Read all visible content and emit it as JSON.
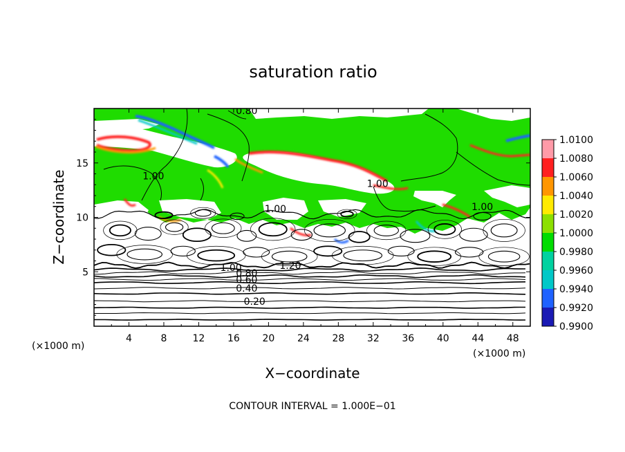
{
  "chart_data": {
    "type": "heatmap",
    "title": "saturation ratio",
    "xlabel": "X−coordinate",
    "ylabel": "Z−coordinate",
    "x_unit": "(×1000 m)",
    "z_unit": "(×1000 m)",
    "xlim": [
      0,
      50
    ],
    "ylim": [
      0,
      20
    ],
    "x_ticks": [
      "4",
      "8",
      "12",
      "16",
      "20",
      "24",
      "28",
      "32",
      "36",
      "40",
      "44",
      "48"
    ],
    "y_ticks": [
      "5",
      "10",
      "15"
    ],
    "colorbar": {
      "range": [
        0.99,
        1.01
      ],
      "ticks": [
        "0.9900",
        "0.9920",
        "0.9940",
        "0.9960",
        "0.9980",
        "1.0000",
        "1.0020",
        "1.0040",
        "1.0060",
        "1.0080",
        "1.0100"
      ],
      "colors": [
        "#6a1a9a",
        "#1a1ab4",
        "#1f62ff",
        "#00c8c8",
        "#00d2a0",
        "#00dc00",
        "#8ce000",
        "#ffea00",
        "#ff9600",
        "#ff2020",
        "#ff9aa8"
      ]
    },
    "contour_labels": [
      {
        "text": "0.20",
        "x": 18.4,
        "z": 2.3
      },
      {
        "text": "0.40",
        "x": 17.5,
        "z": 3.5
      },
      {
        "text": "0.60",
        "x": 17.5,
        "z": 4.3
      },
      {
        "text": "0.80",
        "x": 17.5,
        "z": 4.9
      },
      {
        "text": "1.00",
        "x": 15.7,
        "z": 5.4
      },
      {
        "text": "1.20",
        "x": 22.5,
        "z": 5.6
      },
      {
        "text": "1.00",
        "x": 6.8,
        "z": 13.8
      },
      {
        "text": "1.00",
        "x": 20.8,
        "z": 10.8
      },
      {
        "text": "1.00",
        "x": 32.5,
        "z": 13.1
      },
      {
        "text": "1.00",
        "x": 44.5,
        "z": 11.0
      },
      {
        "text": "0.80",
        "x": 17.5,
        "z": 19.8
      }
    ],
    "stratified_levels": [
      0.6,
      1.2,
      1.7,
      2.3,
      3.0,
      3.5,
      4.0,
      4.3,
      4.6,
      4.9,
      5.2
    ],
    "moist_field_base_z": 10.5,
    "grid": false
  },
  "footer": "CONTOUR INTERVAL = 1.000E−01"
}
